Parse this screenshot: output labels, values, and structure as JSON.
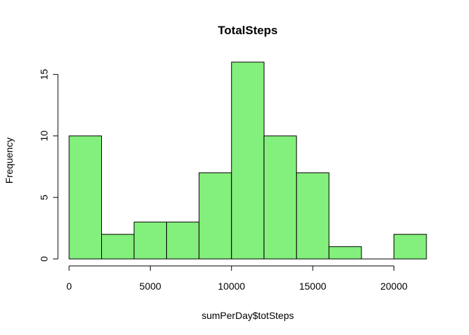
{
  "chart_data": {
    "type": "bar",
    "subtype": "histogram",
    "title": "TotalSteps",
    "xlabel": "sumPerDay$totSteps",
    "ylabel": "Frequency",
    "bins": [
      {
        "start": 0,
        "end": 2000,
        "count": 10
      },
      {
        "start": 2000,
        "end": 4000,
        "count": 2
      },
      {
        "start": 4000,
        "end": 6000,
        "count": 3
      },
      {
        "start": 6000,
        "end": 8000,
        "count": 3
      },
      {
        "start": 8000,
        "end": 10000,
        "count": 7
      },
      {
        "start": 10000,
        "end": 12000,
        "count": 16
      },
      {
        "start": 12000,
        "end": 14000,
        "count": 10
      },
      {
        "start": 14000,
        "end": 16000,
        "count": 7
      },
      {
        "start": 16000,
        "end": 18000,
        "count": 1
      },
      {
        "start": 18000,
        "end": 20000,
        "count": 0
      },
      {
        "start": 20000,
        "end": 22000,
        "count": 2
      }
    ],
    "xlim": [
      0,
      22000
    ],
    "ylim": [
      0,
      16
    ],
    "x_ticks": [
      0,
      5000,
      10000,
      15000,
      20000
    ],
    "y_ticks": [
      0,
      5,
      10,
      15
    ],
    "bar_color": "#83EF7C",
    "grid": false,
    "legend": "none"
  }
}
